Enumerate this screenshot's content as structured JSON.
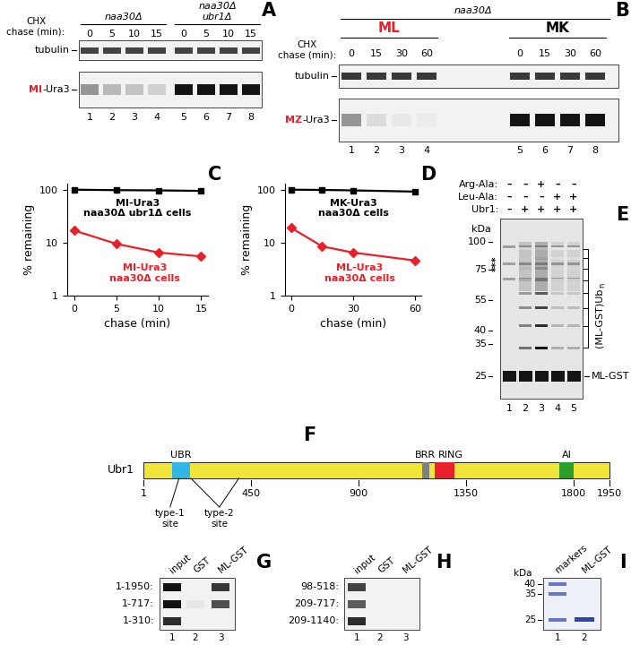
{
  "panels": {
    "A": {
      "label": "A",
      "chase_label": "CHX\nchase (min):",
      "groups": [
        "naa30Δ",
        "naa30Δ\nubr1Δ"
      ],
      "chase": [
        0,
        5,
        10,
        15,
        0,
        5,
        10,
        15
      ],
      "rows": [
        {
          "name": "tubulin",
          "intensity": [
            0.8,
            0.8,
            0.8,
            0.8,
            0.8,
            0.8,
            0.8,
            0.8
          ]
        },
        {
          "prefix": "MI",
          "color": "#e8202a",
          "name": "-Ura3",
          "intensity": [
            0.45,
            0.3,
            0.25,
            0.2,
            1,
            1,
            1,
            1
          ]
        }
      ],
      "lanes": [
        1,
        2,
        3,
        4,
        5,
        6,
        7,
        8
      ]
    },
    "B": {
      "label": "B",
      "strain": "naa30Δ",
      "groups": [
        {
          "name": "ML",
          "color": "#e8202a"
        },
        {
          "name": "MK",
          "color": "#000000"
        }
      ],
      "chase_label": "CHX\nchase (min):",
      "chase": [
        0,
        15,
        30,
        60,
        0,
        15,
        30,
        60
      ],
      "rows": [
        {
          "name": "tubulin",
          "intensity": [
            0.85,
            0.85,
            0.85,
            0.85,
            0.85,
            0.85,
            0.85,
            0.85
          ]
        },
        {
          "prefix": "MZ",
          "color": "#e8202a",
          "name": "-Ura3",
          "intensity": [
            0.45,
            0.15,
            0.1,
            0.08,
            1,
            1,
            1,
            1
          ]
        }
      ],
      "lanes": [
        1,
        2,
        3,
        4,
        5,
        6,
        7,
        8
      ]
    },
    "E": {
      "label": "E",
      "treatments": [
        {
          "name": "Arg-Ala:",
          "signs": [
            "–",
            "–",
            "+",
            "–",
            "–"
          ]
        },
        {
          "name": "Leu-Ala:",
          "signs": [
            "–",
            "–",
            "–",
            "+",
            "+"
          ]
        },
        {
          "name": "Ubr1:",
          "signs": [
            "–",
            "+",
            "+",
            "+",
            "+"
          ]
        }
      ],
      "kda_label": "kDa",
      "markers": [
        100,
        75,
        55,
        40,
        35,
        25
      ],
      "asterisks": "***",
      "ladder_label": "(ML-GST)Ub",
      "ladder_subscript": "n",
      "product": "ML-GST",
      "ladder_intensity": [
        0,
        0.6,
        1,
        0.35,
        0.35
      ],
      "lanes": [
        1,
        2,
        3,
        4,
        5
      ]
    },
    "F": {
      "label": "F",
      "protein": "Ubr1",
      "color": "#f2e53a",
      "length_ticks": [
        1,
        450,
        900,
        1350,
        1800,
        1950
      ],
      "domains": [
        {
          "name": "UBR",
          "start": 120,
          "end": 195,
          "color": "#33b5e5"
        },
        {
          "name": "BRR",
          "start": 1165,
          "end": 1195,
          "color": "#808080"
        },
        {
          "name": "RING",
          "start": 1220,
          "end": 1300,
          "color": "#e8202a"
        },
        {
          "name": "AI",
          "start": 1740,
          "end": 1800,
          "color": "#2ca02c"
        }
      ],
      "sites": [
        {
          "name": "type-1\nsite",
          "start": 150,
          "end": 150
        },
        {
          "name": "type-2\nsite",
          "start": 200,
          "end": 400
        }
      ]
    },
    "G": {
      "label": "G",
      "columns": [
        "input",
        "GST",
        "ML-GST"
      ],
      "rows": [
        {
          "name": "1-1950:",
          "intensity": [
            1,
            0,
            0.85
          ]
        },
        {
          "name": "1-717:",
          "intensity": [
            1,
            0.1,
            0.75
          ]
        },
        {
          "name": "1-310:",
          "intensity": [
            0.9,
            0,
            0
          ]
        }
      ],
      "lanes": [
        1,
        2,
        3
      ]
    },
    "H": {
      "label": "H",
      "columns": [
        "input",
        "GST",
        "ML-GST"
      ],
      "rows": [
        {
          "name": "98-518:",
          "intensity": [
            0.8,
            0,
            0
          ]
        },
        {
          "name": "209-717:",
          "intensity": [
            0.7,
            0,
            0.05
          ]
        },
        {
          "name": "209-1140:",
          "intensity": [
            0.9,
            0,
            0
          ]
        }
      ],
      "lanes": [
        1,
        2,
        3
      ]
    },
    "I": {
      "label": "I",
      "columns": [
        "markers",
        "ML-GST"
      ],
      "kda_label": "kDa",
      "markers": [
        40,
        35,
        25
      ],
      "lanes": [
        1,
        2
      ]
    }
  },
  "chart_data": [
    {
      "type": "line",
      "panel_label": "C",
      "xlabel": "chase (min)",
      "ylabel": "% remaining",
      "log": "y",
      "x": [
        0,
        5,
        10,
        15
      ],
      "xlim": [
        -0.8,
        15.8
      ],
      "xticks": [
        0,
        5,
        10,
        15
      ],
      "ylim": [
        1,
        130
      ],
      "yticks": [
        1,
        10,
        100
      ],
      "series": [
        {
          "name": "MI-Ura3\nnaa30Δ ubr1Δ cells",
          "color": "#000000",
          "marker": "s",
          "values": [
            100,
            98,
            97,
            95
          ]
        },
        {
          "name": "MI-Ura3\nnaa30Δ cells",
          "color": "#e8202a",
          "marker": "D",
          "values": [
            17,
            9.5,
            6.5,
            5.5
          ]
        }
      ]
    },
    {
      "type": "line",
      "panel_label": "D",
      "xlabel": "chase (min)",
      "ylabel": "% remaining",
      "log": "y",
      "x": [
        0,
        15,
        30,
        60
      ],
      "xlim": [
        -3,
        63
      ],
      "xticks": [
        0,
        30,
        60
      ],
      "ylim": [
        1,
        130
      ],
      "yticks": [
        1,
        10,
        100
      ],
      "series": [
        {
          "name": "MK-Ura3\nnaa30Δ cells",
          "color": "#000000",
          "marker": "s",
          "values": [
            100,
            99,
            97,
            92
          ]
        },
        {
          "name": "ML-Ura3\nnaa30Δ cells",
          "color": "#e8202a",
          "marker": "D",
          "values": [
            19,
            8.5,
            6.5,
            4.6
          ]
        }
      ]
    }
  ]
}
